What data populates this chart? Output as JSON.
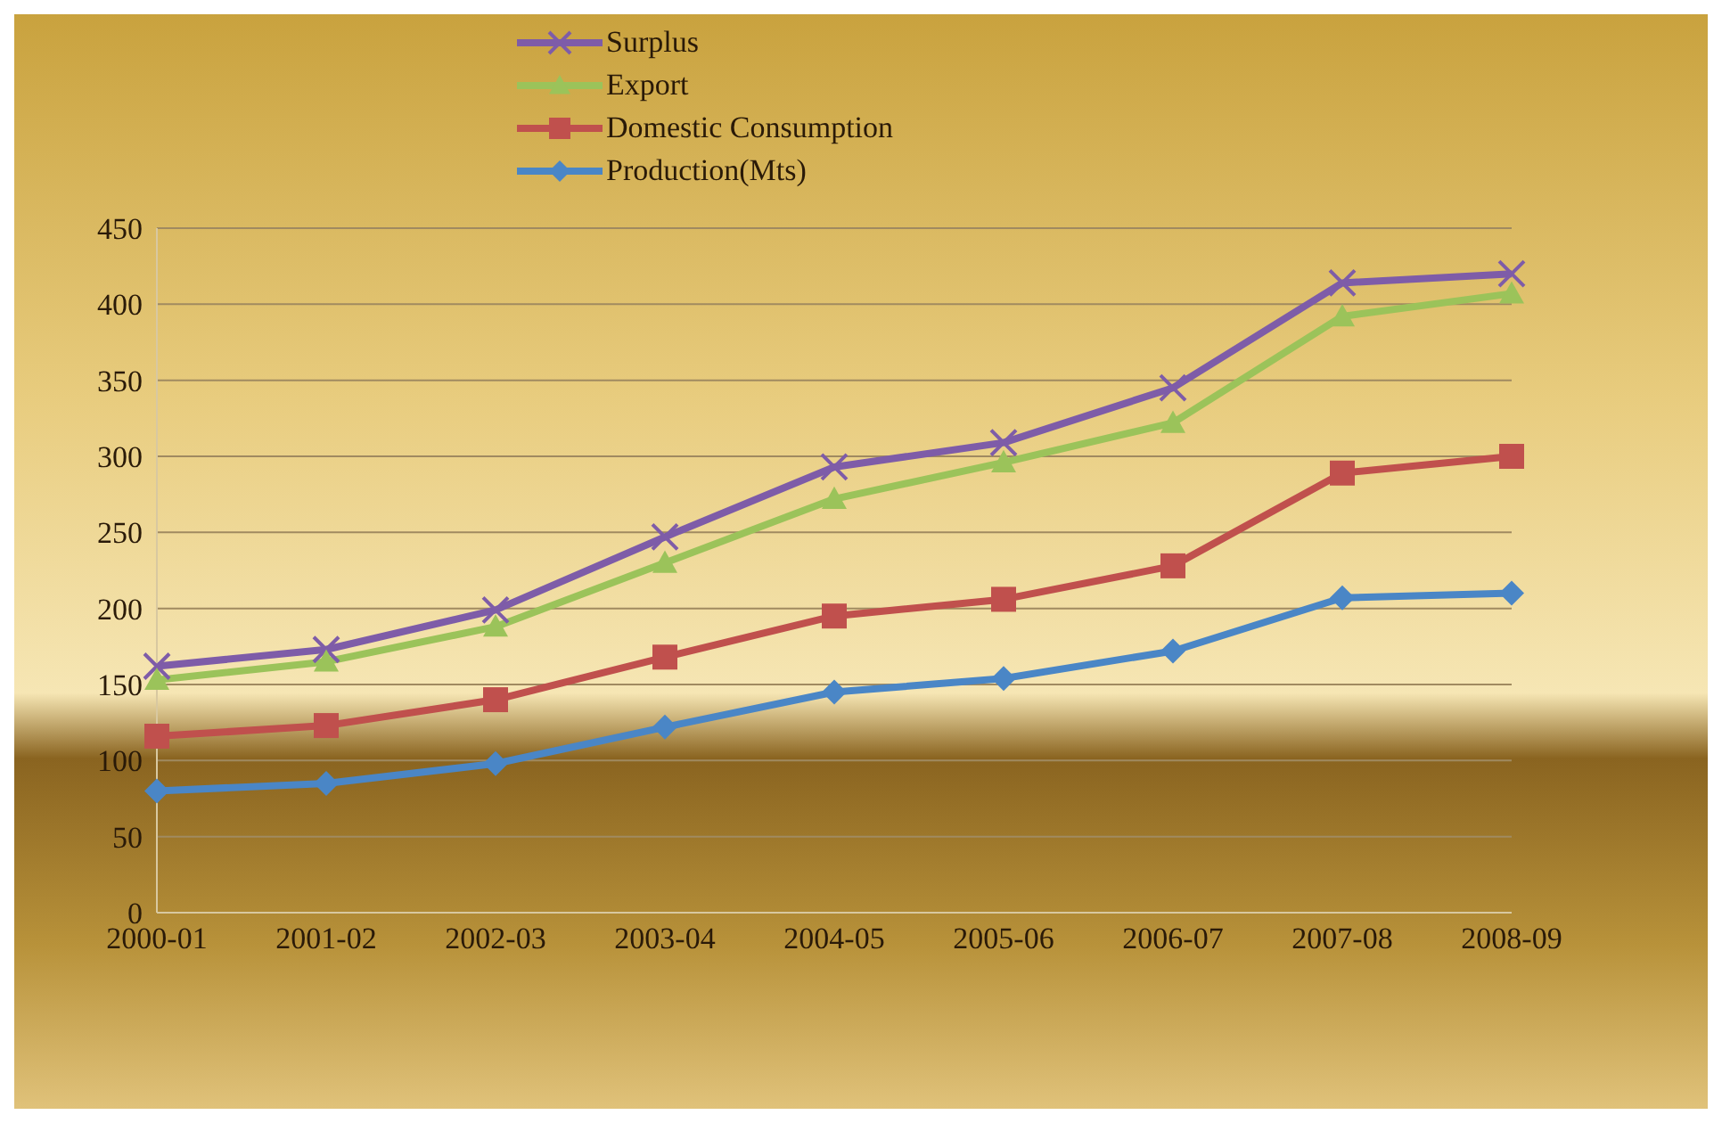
{
  "chart_data": {
    "type": "line",
    "categories": [
      "2000-01",
      "2001-02",
      "2002-03",
      "2003-04",
      "2004-05",
      "2005-06",
      "2006-07",
      "2007-08",
      "2008-09"
    ],
    "series": [
      {
        "name": "Surplus",
        "color": "#7e5ca8",
        "marker": "cross",
        "values": [
          162,
          173,
          199,
          247,
          293,
          309,
          345,
          414,
          420
        ]
      },
      {
        "name": "Export",
        "color": "#9bc35a",
        "marker": "triangle",
        "values": [
          153,
          165,
          188,
          230,
          272,
          296,
          322,
          392,
          407
        ]
      },
      {
        "name": "Domestic Consumption",
        "color": "#c0504d",
        "marker": "square",
        "values": [
          116,
          123,
          140,
          168,
          195,
          206,
          228,
          289,
          300
        ]
      },
      {
        "name": "Production(Mts)",
        "color": "#4a86c6",
        "marker": "diamond",
        "values": [
          80,
          85,
          98,
          122,
          145,
          154,
          172,
          207,
          210
        ]
      }
    ],
    "ylim": [
      0,
      450
    ],
    "yticks": [
      0,
      50,
      100,
      150,
      200,
      250,
      300,
      350,
      400,
      450
    ],
    "grid": "y",
    "legend": "top"
  }
}
